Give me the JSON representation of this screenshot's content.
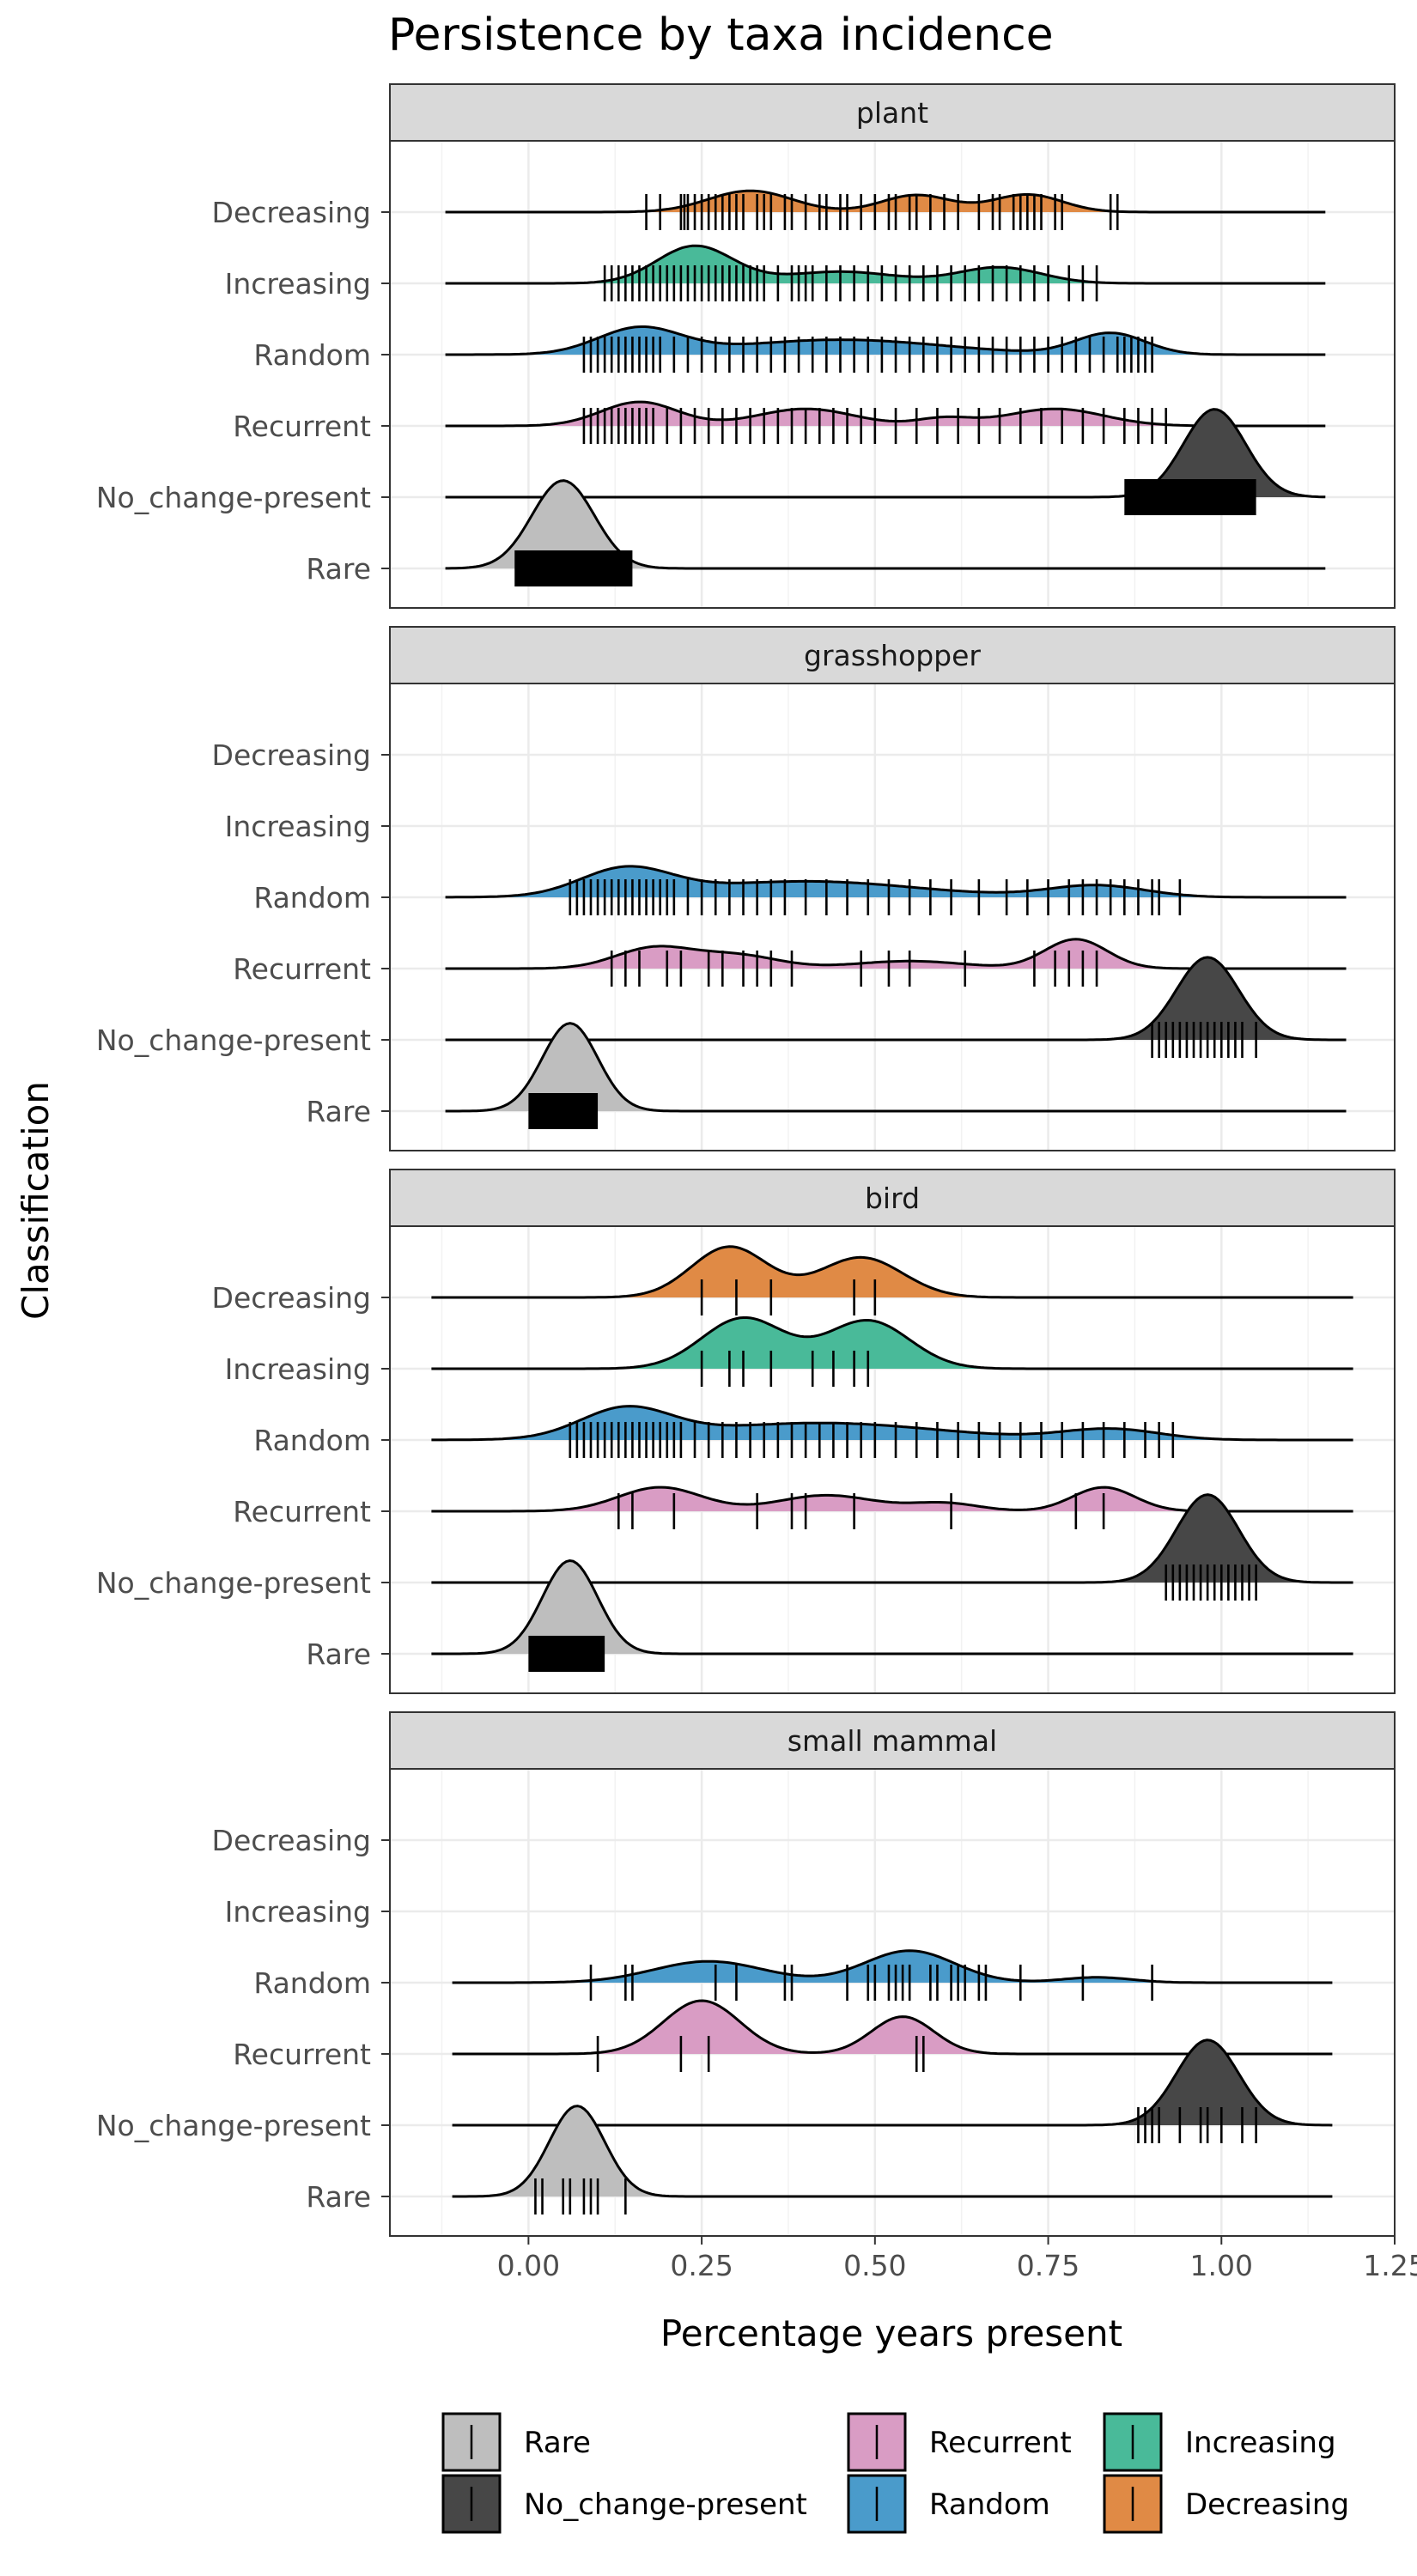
{
  "chart_data": {
    "type": "ridgeline",
    "title": "Persistence by taxa incidence",
    "xlabel": "Percentage years present",
    "ylabel": "Classification",
    "x_ticks": [
      "0.00",
      "0.25",
      "0.50",
      "0.75",
      "1.00",
      "1.25"
    ],
    "x_tick_values": [
      0,
      0.25,
      0.5,
      0.75,
      1.0,
      1.25
    ],
    "xlim": [
      -0.2,
      1.25
    ],
    "categories": [
      "Decreasing",
      "Increasing",
      "Random",
      "Recurrent",
      "No_change-present",
      "Rare"
    ],
    "grid": true,
    "legend_position": "bottom",
    "legend": [
      {
        "label": "Rare",
        "color": "#BEBEBE"
      },
      {
        "label": "No_change-present",
        "color": "#474747"
      },
      {
        "label": "Recurrent",
        "color": "#D99CC4"
      },
      {
        "label": "Random",
        "color": "#4A9BCB"
      },
      {
        "label": "Increasing",
        "color": "#49BA99"
      },
      {
        "label": "Decreasing",
        "color": "#E08A45"
      }
    ],
    "facets": [
      {
        "label": "plant",
        "series": [
          {
            "name": "Decreasing",
            "color": "#E08A45",
            "xrange": [
              -0.12,
              1.15
            ],
            "peaks": [
              [
                0.32,
                0.06,
                0.4
              ],
              [
                0.56,
                0.05,
                0.32
              ],
              [
                0.72,
                0.05,
                0.33
              ]
            ],
            "ticks": [
              0.17,
              0.19,
              0.22,
              0.225,
              0.23,
              0.24,
              0.25,
              0.26,
              0.27,
              0.28,
              0.29,
              0.3,
              0.31,
              0.33,
              0.34,
              0.35,
              0.37,
              0.38,
              0.4,
              0.42,
              0.43,
              0.45,
              0.46,
              0.48,
              0.5,
              0.52,
              0.53,
              0.55,
              0.56,
              0.58,
              0.6,
              0.62,
              0.65,
              0.67,
              0.68,
              0.7,
              0.71,
              0.72,
              0.73,
              0.74,
              0.76,
              0.77,
              0.84,
              0.85
            ]
          },
          {
            "name": "Increasing",
            "color": "#49BA99",
            "xrange": [
              -0.12,
              1.15
            ],
            "peaks": [
              [
                0.24,
                0.055,
                0.7
              ],
              [
                0.45,
                0.08,
                0.22
              ],
              [
                0.68,
                0.06,
                0.3
              ]
            ],
            "ticks": [
              0.11,
              0.12,
              0.13,
              0.14,
              0.15,
              0.16,
              0.17,
              0.18,
              0.19,
              0.2,
              0.21,
              0.22,
              0.23,
              0.24,
              0.25,
              0.26,
              0.27,
              0.28,
              0.29,
              0.3,
              0.31,
              0.32,
              0.33,
              0.34,
              0.36,
              0.38,
              0.39,
              0.4,
              0.41,
              0.43,
              0.45,
              0.47,
              0.49,
              0.51,
              0.53,
              0.55,
              0.57,
              0.59,
              0.61,
              0.63,
              0.65,
              0.67,
              0.69,
              0.71,
              0.73,
              0.75,
              0.78,
              0.8,
              0.82
            ]
          },
          {
            "name": "Random",
            "color": "#4A9BCB",
            "xrange": [
              -0.12,
              1.15
            ],
            "peaks": [
              [
                0.16,
                0.06,
                0.48
              ],
              [
                0.45,
                0.15,
                0.28
              ],
              [
                0.84,
                0.05,
                0.4
              ]
            ],
            "ticks": [
              0.08,
              0.09,
              0.1,
              0.11,
              0.12,
              0.13,
              0.14,
              0.15,
              0.16,
              0.17,
              0.18,
              0.19,
              0.21,
              0.23,
              0.25,
              0.27,
              0.29,
              0.31,
              0.33,
              0.35,
              0.37,
              0.39,
              0.41,
              0.43,
              0.45,
              0.47,
              0.49,
              0.51,
              0.53,
              0.55,
              0.57,
              0.59,
              0.61,
              0.63,
              0.65,
              0.67,
              0.69,
              0.71,
              0.73,
              0.75,
              0.77,
              0.79,
              0.81,
              0.83,
              0.85,
              0.86,
              0.87,
              0.88,
              0.89,
              0.9
            ]
          },
          {
            "name": "Recurrent",
            "color": "#D99CC4",
            "xrange": [
              -0.12,
              1.15
            ],
            "peaks": [
              [
                0.16,
                0.055,
                0.45
              ],
              [
                0.4,
                0.07,
                0.32
              ],
              [
                0.6,
                0.04,
                0.14
              ],
              [
                0.76,
                0.07,
                0.32
              ]
            ],
            "ticks": [
              0.08,
              0.09,
              0.1,
              0.11,
              0.12,
              0.13,
              0.14,
              0.15,
              0.16,
              0.17,
              0.18,
              0.2,
              0.22,
              0.24,
              0.26,
              0.28,
              0.3,
              0.32,
              0.34,
              0.36,
              0.38,
              0.4,
              0.42,
              0.44,
              0.46,
              0.48,
              0.5,
              0.53,
              0.56,
              0.59,
              0.62,
              0.65,
              0.68,
              0.71,
              0.74,
              0.77,
              0.8,
              0.83,
              0.86,
              0.88,
              0.9,
              0.92
            ]
          },
          {
            "name": "No_change-present",
            "color": "#474747",
            "xrange": [
              -0.12,
              1.15
            ],
            "peaks": [
              [
                0.99,
                0.045,
                1.65
              ]
            ],
            "block": [
              0.86,
              1.05
            ]
          },
          {
            "name": "Rare",
            "color": "#BEBEBE",
            "xrange": [
              -0.12,
              1.15
            ],
            "peaks": [
              [
                0.05,
                0.045,
                1.65
              ]
            ],
            "block": [
              -0.02,
              0.15
            ]
          }
        ]
      },
      {
        "label": "grasshopper",
        "series": [
          {
            "name": "Decreasing",
            "color": "#E08A45",
            "xrange": null
          },
          {
            "name": "Increasing",
            "color": "#49BA99",
            "xrange": null
          },
          {
            "name": "Random",
            "color": "#4A9BCB",
            "xrange": [
              -0.12,
              1.18
            ],
            "peaks": [
              [
                0.14,
                0.065,
                0.5
              ],
              [
                0.4,
                0.16,
                0.3
              ],
              [
                0.82,
                0.07,
                0.22
              ]
            ],
            "ticks": [
              0.06,
              0.07,
              0.08,
              0.09,
              0.1,
              0.11,
              0.12,
              0.13,
              0.14,
              0.15,
              0.16,
              0.17,
              0.18,
              0.19,
              0.2,
              0.21,
              0.23,
              0.25,
              0.27,
              0.29,
              0.31,
              0.33,
              0.35,
              0.37,
              0.4,
              0.43,
              0.46,
              0.49,
              0.52,
              0.55,
              0.58,
              0.61,
              0.65,
              0.69,
              0.72,
              0.75,
              0.78,
              0.8,
              0.82,
              0.84,
              0.86,
              0.88,
              0.9,
              0.91,
              0.94
            ]
          },
          {
            "name": "Recurrent",
            "color": "#D99CC4",
            "xrange": [
              -0.12,
              1.18
            ],
            "peaks": [
              [
                0.18,
                0.055,
                0.38
              ],
              [
                0.3,
                0.06,
                0.25
              ],
              [
                0.55,
                0.08,
                0.14
              ],
              [
                0.79,
                0.045,
                0.55
              ]
            ],
            "ticks": [
              0.12,
              0.14,
              0.16,
              0.2,
              0.22,
              0.26,
              0.28,
              0.31,
              0.33,
              0.35,
              0.38,
              0.48,
              0.52,
              0.55,
              0.63,
              0.73,
              0.76,
              0.78,
              0.8,
              0.82
            ]
          },
          {
            "name": "No_change-present",
            "color": "#474747",
            "xrange": [
              -0.12,
              1.18
            ],
            "peaks": [
              [
                0.98,
                0.045,
                1.55
              ]
            ],
            "ticks": [
              0.9,
              0.91,
              0.92,
              0.93,
              0.94,
              0.95,
              0.96,
              0.97,
              0.98,
              0.99,
              1.0,
              1.01,
              1.02,
              1.03,
              1.05
            ]
          },
          {
            "name": "Rare",
            "color": "#BEBEBE",
            "xrange": [
              -0.12,
              1.18
            ],
            "peaks": [
              [
                0.06,
                0.04,
                1.65
              ]
            ],
            "block": [
              0.0,
              0.1
            ]
          }
        ]
      },
      {
        "label": "bird",
        "series": [
          {
            "name": "Decreasing",
            "color": "#E08A45",
            "xrange": [
              -0.14,
              1.19
            ],
            "peaks": [
              [
                0.29,
                0.055,
                0.95
              ],
              [
                0.48,
                0.06,
                0.75
              ]
            ],
            "ticks": [
              0.25,
              0.3,
              0.35,
              0.47,
              0.5
            ]
          },
          {
            "name": "Increasing",
            "color": "#49BA99",
            "xrange": [
              -0.14,
              1.19
            ],
            "peaks": [
              [
                0.31,
                0.06,
                0.95
              ],
              [
                0.49,
                0.06,
                0.9
              ]
            ],
            "ticks": [
              0.25,
              0.29,
              0.31,
              0.35,
              0.41,
              0.44,
              0.47,
              0.49
            ]
          },
          {
            "name": "Random",
            "color": "#4A9BCB",
            "xrange": [
              -0.14,
              1.19
            ],
            "peaks": [
              [
                0.14,
                0.065,
                0.55
              ],
              [
                0.42,
                0.17,
                0.32
              ],
              [
                0.84,
                0.07,
                0.2
              ]
            ],
            "ticks": [
              0.06,
              0.07,
              0.08,
              0.09,
              0.1,
              0.11,
              0.12,
              0.13,
              0.14,
              0.15,
              0.16,
              0.17,
              0.18,
              0.19,
              0.2,
              0.21,
              0.22,
              0.24,
              0.26,
              0.28,
              0.3,
              0.32,
              0.34,
              0.36,
              0.38,
              0.4,
              0.42,
              0.44,
              0.46,
              0.48,
              0.5,
              0.53,
              0.56,
              0.59,
              0.62,
              0.65,
              0.68,
              0.71,
              0.74,
              0.77,
              0.8,
              0.83,
              0.86,
              0.89,
              0.91,
              0.93
            ]
          },
          {
            "name": "Recurrent",
            "color": "#D99CC4",
            "xrange": [
              -0.14,
              1.19
            ],
            "peaks": [
              [
                0.19,
                0.06,
                0.45
              ],
              [
                0.43,
                0.07,
                0.3
              ],
              [
                0.6,
                0.05,
                0.15
              ],
              [
                0.83,
                0.045,
                0.45
              ]
            ],
            "ticks": [
              0.13,
              0.15,
              0.21,
              0.33,
              0.38,
              0.4,
              0.47,
              0.61,
              0.79,
              0.83
            ]
          },
          {
            "name": "No_change-present",
            "color": "#474747",
            "xrange": [
              -0.14,
              1.19
            ],
            "peaks": [
              [
                0.98,
                0.045,
                1.65
              ]
            ],
            "ticks": [
              0.92,
              0.93,
              0.94,
              0.95,
              0.96,
              0.97,
              0.98,
              0.99,
              1.0,
              1.01,
              1.02,
              1.03,
              1.04,
              1.05
            ]
          },
          {
            "name": "Rare",
            "color": "#BEBEBE",
            "xrange": [
              -0.14,
              1.19
            ],
            "peaks": [
              [
                0.06,
                0.04,
                1.75
              ]
            ],
            "block": [
              0.0,
              0.11
            ]
          }
        ]
      },
      {
        "label": "small mammal",
        "series": [
          {
            "name": "Decreasing",
            "color": "#E08A45",
            "xrange": null
          },
          {
            "name": "Increasing",
            "color": "#49BA99",
            "xrange": null
          },
          {
            "name": "Random",
            "color": "#4A9BCB",
            "xrange": [
              -0.11,
              1.16
            ],
            "peaks": [
              [
                0.26,
                0.08,
                0.4
              ],
              [
                0.55,
                0.065,
                0.6
              ],
              [
                0.82,
                0.05,
                0.1
              ]
            ],
            "ticks": [
              0.09,
              0.14,
              0.15,
              0.27,
              0.3,
              0.37,
              0.38,
              0.46,
              0.49,
              0.5,
              0.52,
              0.53,
              0.54,
              0.55,
              0.58,
              0.59,
              0.61,
              0.62,
              0.63,
              0.65,
              0.66,
              0.71,
              0.8,
              0.9
            ]
          },
          {
            "name": "Recurrent",
            "color": "#D99CC4",
            "xrange": [
              -0.11,
              1.16
            ],
            "peaks": [
              [
                0.25,
                0.055,
                1.0
              ],
              [
                0.54,
                0.045,
                0.7
              ]
            ],
            "ticks": [
              0.1,
              0.22,
              0.26,
              0.56,
              0.57
            ]
          },
          {
            "name": "No_change-present",
            "color": "#474747",
            "xrange": [
              -0.11,
              1.16
            ],
            "peaks": [
              [
                0.98,
                0.045,
                1.6
              ]
            ],
            "ticks": [
              0.88,
              0.89,
              0.9,
              0.91,
              0.94,
              0.97,
              0.98,
              1.0,
              1.03,
              1.05
            ]
          },
          {
            "name": "Rare",
            "color": "#BEBEBE",
            "xrange": [
              -0.11,
              1.16
            ],
            "peaks": [
              [
                0.07,
                0.04,
                1.7
              ]
            ],
            "ticks": [
              0.01,
              0.02,
              0.05,
              0.06,
              0.08,
              0.09,
              0.1,
              0.14
            ]
          }
        ]
      }
    ]
  }
}
